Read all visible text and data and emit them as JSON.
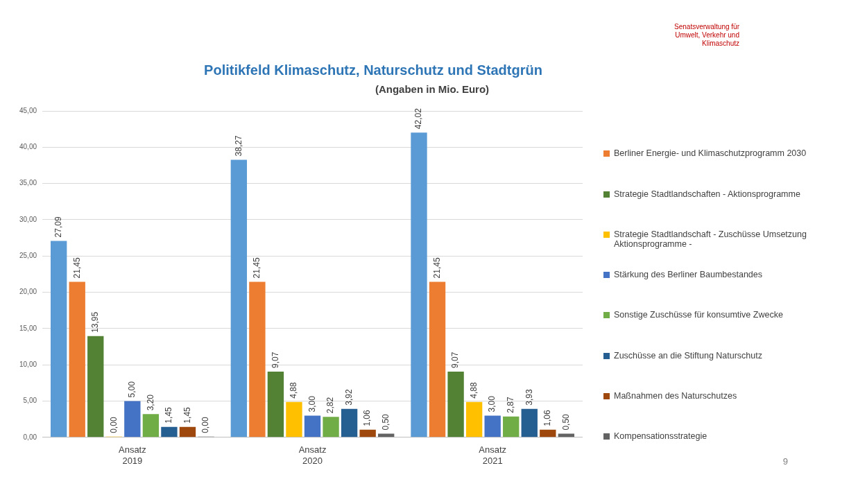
{
  "chart_data": {
    "type": "bar",
    "title": "Politikfeld Klimaschutz, Naturschutz und Stadtgrün",
    "subtitle": "(Angaben in Mio. Euro)",
    "categories": [
      "Ansatz 2019",
      "Ansatz 2020",
      "Ansatz 2021"
    ],
    "series": [
      {
        "color": "#5b9bd5",
        "values": [
          27.09,
          38.27,
          42.02
        ],
        "value_labels": [
          "27,09",
          "38,27",
          "42,02"
        ]
      },
      {
        "name": "Berliner Energie- und Klimaschutzprogramm 2030",
        "color": "#ed7d31",
        "values": [
          21.45,
          21.45,
          21.45
        ],
        "value_labels": [
          "21,45",
          "21,45",
          "21,45"
        ]
      },
      {
        "name": "Strategie Stadtlandschaften - Aktionsprogramme",
        "color": "#548235",
        "values": [
          13.95,
          9.07,
          9.07
        ],
        "value_labels": [
          "13,95",
          "9,07",
          "9,07"
        ]
      },
      {
        "name": "Strategie Stadtlandschaft - Zuschüsse Umsetzung Aktionsprogramme -",
        "color": "#ffc000",
        "values": [
          0,
          4.88,
          4.88
        ],
        "value_labels": [
          "0,00",
          "4,88",
          "4,88"
        ]
      },
      {
        "name": "Stärkung des Berliner Baumbestandes",
        "color": "#4472c4",
        "values": [
          5,
          3,
          3
        ],
        "value_labels": [
          "5,00",
          "3,00",
          "3,00"
        ]
      },
      {
        "name": "Sonstige Zuschüsse für konsumtive Zwecke",
        "color": "#70ad47",
        "values": [
          3.2,
          2.82,
          2.87
        ],
        "value_labels": [
          "3,20",
          "2,82",
          "2,87"
        ]
      },
      {
        "name": "Zuschüsse an die Stiftung Naturschutz",
        "color": "#255e91",
        "values": [
          1.45,
          3.92,
          3.93
        ],
        "value_labels": [
          "1,45",
          "3,92",
          "3,93"
        ]
      },
      {
        "name": "Maßnahmen des Naturschutzes",
        "color": "#9e480e",
        "values": [
          1.45,
          1.06,
          1.06
        ],
        "value_labels": [
          "1,45",
          "1,06",
          "1,06"
        ]
      },
      {
        "name": "Kompensationsstrategie",
        "color": "#636363",
        "values": [
          0,
          0.5,
          0.5
        ],
        "value_labels": [
          "0,00",
          "0,50",
          "0,50"
        ]
      }
    ],
    "ylim": [
      0,
      45
    ],
    "yticks": [
      {
        "value": 0,
        "label": "0,00"
      },
      {
        "value": 5,
        "label": "5,00"
      },
      {
        "value": 10,
        "label": "10,00"
      },
      {
        "value": 15,
        "label": "15,00"
      },
      {
        "value": 20,
        "label": "20,00"
      },
      {
        "value": 25,
        "label": "25,00"
      },
      {
        "value": 30,
        "label": "30,00"
      },
      {
        "value": 35,
        "label": "35,00"
      },
      {
        "value": 40,
        "label": "40,00"
      },
      {
        "value": 45,
        "label": "45,00"
      }
    ],
    "grid": "y",
    "legend": "right",
    "annotations": [
      "Senatsverwaltung für Umwelt, Verkehr und Klimaschutz",
      "9"
    ]
  }
}
